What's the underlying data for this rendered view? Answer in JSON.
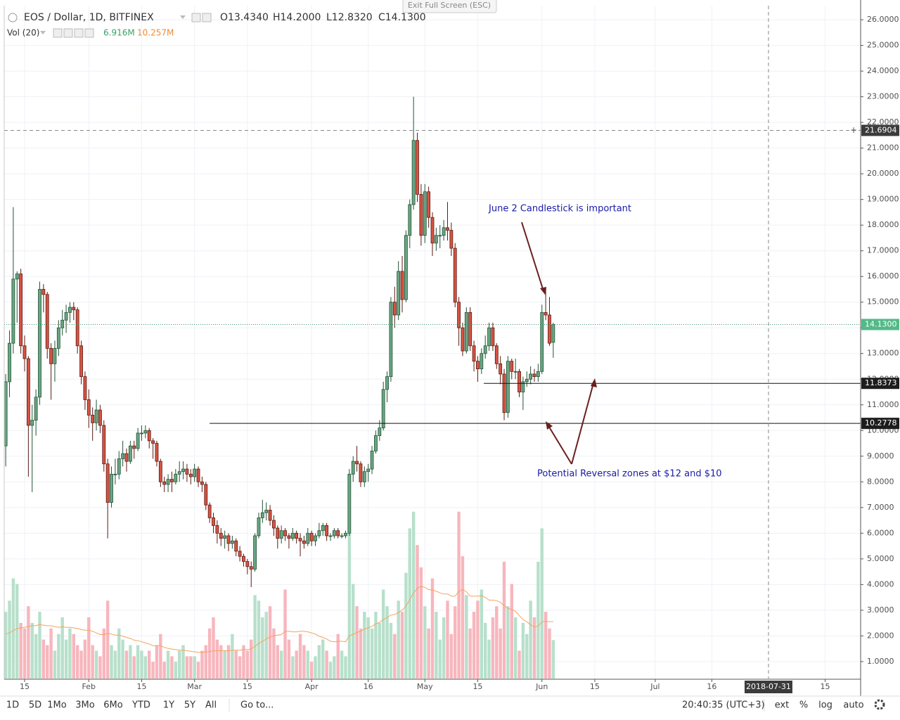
{
  "exit_fullscreen": "Exit Full Screen (ESC)",
  "toolbar": {
    "ranges": [
      "1D",
      "5D",
      "1Mo",
      "3Mo",
      "6Mo",
      "YTD",
      "1Y",
      "5Y",
      "All"
    ],
    "goto": "Go to...",
    "time": "20:40:35 (UTC+3)",
    "options": [
      "ext",
      "%",
      "log",
      "auto"
    ]
  },
  "chart_data": {
    "type": "candlestick",
    "title": "EOS / Dollar, 1D, BITFINEX",
    "ohlc_labels": [
      "O13.4340",
      "H14.2000",
      "L12.8320",
      "C14.1300"
    ],
    "volume_label": "Vol (20)",
    "volume_value": "6.916M",
    "volume_ma_value": "10.257M",
    "up_color": "#6ba583",
    "down_color": "#d75442",
    "up_volume_color": "#b7e0cb",
    "down_volume_color": "#f7b6bd",
    "volume_ma_color": "#f5a35c",
    "grid": true,
    "x": [
      10,
      11,
      12,
      13,
      14,
      15,
      16,
      17,
      18,
      19,
      20,
      21,
      22,
      23,
      24,
      25,
      26,
      27,
      28,
      29,
      30,
      31,
      32,
      33,
      34,
      35,
      36,
      37,
      38,
      39,
      40,
      41,
      42,
      43,
      44,
      45,
      46,
      47,
      48,
      49,
      50,
      51,
      52,
      53,
      54,
      55,
      56,
      57,
      58,
      59,
      60,
      61,
      62,
      63,
      64,
      65,
      66,
      67,
      68,
      69,
      70,
      71,
      72,
      73,
      74,
      75,
      76,
      77,
      78,
      79,
      80,
      81,
      82,
      83,
      84,
      85,
      86,
      87,
      88,
      89,
      90,
      91,
      92,
      93,
      94,
      95,
      96,
      97,
      98,
      99,
      100,
      101,
      102,
      103,
      104,
      105,
      106,
      107,
      108,
      109,
      110,
      111,
      112,
      113,
      114,
      115,
      116,
      117,
      118,
      119,
      120,
      121,
      122,
      123,
      124,
      125,
      126,
      127,
      128,
      129,
      130,
      131,
      132,
      133,
      134,
      135,
      136,
      137,
      138,
      139,
      140,
      141,
      142,
      143,
      144,
      145,
      146,
      147,
      148,
      149,
      150,
      151,
      152,
      153,
      154,
      155
    ],
    "candles": [
      [
        9.4,
        12.2,
        8.6,
        11.9
      ],
      [
        11.9,
        13.9,
        11.3,
        13.4
      ],
      [
        13.4,
        18.7,
        13.0,
        15.9
      ],
      [
        15.9,
        16.2,
        14.2,
        16.1
      ],
      [
        16.1,
        16.3,
        13.0,
        13.3
      ],
      [
        13.3,
        13.7,
        12.3,
        12.8
      ],
      [
        12.8,
        12.9,
        8.2,
        10.2
      ],
      [
        10.2,
        11.0,
        7.6,
        10.4
      ],
      [
        10.4,
        11.6,
        9.8,
        11.3
      ],
      [
        11.3,
        15.8,
        11.0,
        15.5
      ],
      [
        15.5,
        15.7,
        14.6,
        15.3
      ],
      [
        15.3,
        15.4,
        12.8,
        13.2
      ],
      [
        13.2,
        13.4,
        11.2,
        12.6
      ],
      [
        12.6,
        13.5,
        11.9,
        13.2
      ],
      [
        13.2,
        14.3,
        12.9,
        14.0
      ],
      [
        14.0,
        14.7,
        13.7,
        14.3
      ],
      [
        14.3,
        14.9,
        13.8,
        14.6
      ],
      [
        14.6,
        15.0,
        14.2,
        14.8
      ],
      [
        14.8,
        15.0,
        14.3,
        14.7
      ],
      [
        14.7,
        14.8,
        13.0,
        13.3
      ],
      [
        13.3,
        13.5,
        11.8,
        12.1
      ],
      [
        12.1,
        12.3,
        10.8,
        11.2
      ],
      [
        11.2,
        11.6,
        10.1,
        10.6
      ],
      [
        10.6,
        10.9,
        9.6,
        10.3
      ],
      [
        10.3,
        11.2,
        10.0,
        10.8
      ],
      [
        10.8,
        11.0,
        9.9,
        10.2
      ],
      [
        10.2,
        10.4,
        8.4,
        8.7
      ],
      [
        8.7,
        8.9,
        5.8,
        7.2
      ],
      [
        7.2,
        8.6,
        7.0,
        8.3
      ],
      [
        8.3,
        8.9,
        7.9,
        8.3
      ],
      [
        8.3,
        9.2,
        8.1,
        8.9
      ],
      [
        8.9,
        9.6,
        8.6,
        9.1
      ],
      [
        9.1,
        9.3,
        8.4,
        8.8
      ],
      [
        8.8,
        9.6,
        8.7,
        9.4
      ],
      [
        9.4,
        9.6,
        8.9,
        9.3
      ],
      [
        9.3,
        10.1,
        9.2,
        9.9
      ],
      [
        9.9,
        10.2,
        9.6,
        9.9
      ],
      [
        9.9,
        10.2,
        9.7,
        10.0
      ],
      [
        10.0,
        10.1,
        9.3,
        9.6
      ],
      [
        9.6,
        9.7,
        8.9,
        9.5
      ],
      [
        9.5,
        9.6,
        8.6,
        8.8
      ],
      [
        8.8,
        8.9,
        7.8,
        8.0
      ],
      [
        8.0,
        8.2,
        7.6,
        7.9
      ],
      [
        7.9,
        8.3,
        7.6,
        8.1
      ],
      [
        8.1,
        8.4,
        7.6,
        8.0
      ],
      [
        8.0,
        8.5,
        7.9,
        8.3
      ],
      [
        8.3,
        8.8,
        8.0,
        8.4
      ],
      [
        8.4,
        8.8,
        8.1,
        8.5
      ],
      [
        8.5,
        8.7,
        8.0,
        8.3
      ],
      [
        8.3,
        8.5,
        7.9,
        8.2
      ],
      [
        8.2,
        8.7,
        8.0,
        8.5
      ],
      [
        8.5,
        8.6,
        7.8,
        8.0
      ],
      [
        8.0,
        8.2,
        7.6,
        7.9
      ],
      [
        7.9,
        8.0,
        6.9,
        7.1
      ],
      [
        7.1,
        7.2,
        6.4,
        6.6
      ],
      [
        6.6,
        6.8,
        6.0,
        6.3
      ],
      [
        6.3,
        6.5,
        5.6,
        6.0
      ],
      [
        6.0,
        6.2,
        5.5,
        5.8
      ],
      [
        5.8,
        6.1,
        5.4,
        5.9
      ],
      [
        5.9,
        6.0,
        5.3,
        5.6
      ],
      [
        5.6,
        5.9,
        5.4,
        5.7
      ],
      [
        5.7,
        5.8,
        5.1,
        5.3
      ],
      [
        5.3,
        5.5,
        4.9,
        5.1
      ],
      [
        5.1,
        5.2,
        4.7,
        4.9
      ],
      [
        4.9,
        5.0,
        4.4,
        4.7
      ],
      [
        4.7,
        4.9,
        3.9,
        4.6
      ],
      [
        4.6,
        6.0,
        4.5,
        5.9
      ],
      [
        5.9,
        6.8,
        5.8,
        6.6
      ],
      [
        6.6,
        7.3,
        6.4,
        6.8
      ],
      [
        6.8,
        7.2,
        6.5,
        6.9
      ],
      [
        6.9,
        7.1,
        6.3,
        6.5
      ],
      [
        6.5,
        6.7,
        5.9,
        6.2
      ],
      [
        6.2,
        6.3,
        5.4,
        5.8
      ],
      [
        5.8,
        6.3,
        5.6,
        6.1
      ],
      [
        6.1,
        6.2,
        5.7,
        5.9
      ],
      [
        5.9,
        6.0,
        5.4,
        5.8
      ],
      [
        5.8,
        6.2,
        5.7,
        6.0
      ],
      [
        6.0,
        6.1,
        5.6,
        5.8
      ],
      [
        5.8,
        6.0,
        5.1,
        5.7
      ],
      [
        5.7,
        5.9,
        5.4,
        5.6
      ],
      [
        5.6,
        6.2,
        5.5,
        6.0
      ],
      [
        6.0,
        6.1,
        5.5,
        5.7
      ],
      [
        5.7,
        6.0,
        5.5,
        5.9
      ],
      [
        5.9,
        6.4,
        5.8,
        6.1
      ],
      [
        6.1,
        6.4,
        5.9,
        6.3
      ],
      [
        6.3,
        6.4,
        5.7,
        5.9
      ],
      [
        5.9,
        6.0,
        5.7,
        5.9
      ],
      [
        5.9,
        6.2,
        5.8,
        6.1
      ],
      [
        6.1,
        6.2,
        5.8,
        5.9
      ],
      [
        5.9,
        6.0,
        5.8,
        5.9
      ],
      [
        5.9,
        6.1,
        5.8,
        6.0
      ],
      [
        6.0,
        8.5,
        5.9,
        8.3
      ],
      [
        8.3,
        9.0,
        8.0,
        8.8
      ],
      [
        8.8,
        9.4,
        8.4,
        8.7
      ],
      [
        8.7,
        8.8,
        7.8,
        8.0
      ],
      [
        8.0,
        8.6,
        7.8,
        8.4
      ],
      [
        8.4,
        8.7,
        8.0,
        8.5
      ],
      [
        8.5,
        9.4,
        8.3,
        9.2
      ],
      [
        9.2,
        10.0,
        9.1,
        9.8
      ],
      [
        9.8,
        10.4,
        9.6,
        10.1
      ],
      [
        10.1,
        11.9,
        10.0,
        11.6
      ],
      [
        11.6,
        12.3,
        11.1,
        12.1
      ],
      [
        12.1,
        15.2,
        11.9,
        15.0
      ],
      [
        15.0,
        15.6,
        14.0,
        14.5
      ],
      [
        14.5,
        16.6,
        14.3,
        16.2
      ],
      [
        16.2,
        16.8,
        14.6,
        15.1
      ],
      [
        15.1,
        17.8,
        15.0,
        17.6
      ],
      [
        17.6,
        19.0,
        17.1,
        18.8
      ],
      [
        18.8,
        23.0,
        18.6,
        21.3
      ],
      [
        21.3,
        21.6,
        18.9,
        19.2
      ],
      [
        19.2,
        19.6,
        17.2,
        17.6
      ],
      [
        17.6,
        19.6,
        17.3,
        19.3
      ],
      [
        19.3,
        19.5,
        17.9,
        18.3
      ],
      [
        18.3,
        18.5,
        16.8,
        17.3
      ],
      [
        17.3,
        17.9,
        17.0,
        17.6
      ],
      [
        17.6,
        18.0,
        17.1,
        17.6
      ],
      [
        17.6,
        18.2,
        17.4,
        17.9
      ],
      [
        17.9,
        18.9,
        17.4,
        17.8
      ],
      [
        17.8,
        18.1,
        16.8,
        17.1
      ],
      [
        17.1,
        17.3,
        14.8,
        15.0
      ],
      [
        15.0,
        15.2,
        13.3,
        14.0
      ],
      [
        14.0,
        14.2,
        12.9,
        13.1
      ],
      [
        13.1,
        14.8,
        13.0,
        14.6
      ],
      [
        14.6,
        14.8,
        13.1,
        13.3
      ],
      [
        13.3,
        13.5,
        12.3,
        12.7
      ],
      [
        12.7,
        12.9,
        11.9,
        12.4
      ],
      [
        12.4,
        13.2,
        12.2,
        13.0
      ],
      [
        13.0,
        13.7,
        12.8,
        13.3
      ],
      [
        13.3,
        14.2,
        13.1,
        14.0
      ],
      [
        14.0,
        14.2,
        13.1,
        13.3
      ],
      [
        13.3,
        13.4,
        12.4,
        12.6
      ],
      [
        12.6,
        12.9,
        11.8,
        12.2
      ],
      [
        12.2,
        12.4,
        10.4,
        10.7
      ],
      [
        10.7,
        12.9,
        10.5,
        12.7
      ],
      [
        12.7,
        12.8,
        12.0,
        12.3
      ],
      [
        12.3,
        12.8,
        12.0,
        12.3
      ],
      [
        12.3,
        12.4,
        11.3,
        11.5
      ],
      [
        11.5,
        12.1,
        10.8,
        11.9
      ],
      [
        11.9,
        12.3,
        11.7,
        12.0
      ],
      [
        12.0,
        12.5,
        11.8,
        12.2
      ],
      [
        12.2,
        12.4,
        11.9,
        12.1
      ],
      [
        12.1,
        12.6,
        11.9,
        12.3
      ],
      [
        12.3,
        14.9,
        12.2,
        14.6
      ],
      [
        14.6,
        15.5,
        14.3,
        14.5
      ],
      [
        14.5,
        15.2,
        13.3,
        13.4
      ],
      [
        13.434,
        14.2,
        12.832,
        14.13
      ]
    ],
    "volume": [
      12,
      14,
      18,
      17,
      10,
      9,
      13,
      10,
      8,
      12,
      7,
      6,
      9,
      5,
      8,
      11,
      7,
      9,
      8,
      6,
      5,
      7,
      11,
      6,
      5,
      4,
      9,
      14,
      6,
      5,
      9,
      7,
      5,
      6,
      4,
      6,
      5,
      4,
      5,
      3,
      6,
      8,
      3,
      5,
      4,
      3,
      5,
      6,
      4,
      4,
      4,
      3,
      5,
      6,
      9,
      11,
      7,
      6,
      5,
      6,
      8,
      5,
      4,
      6,
      5,
      7,
      15,
      14,
      11,
      12,
      13,
      9,
      6,
      5,
      16,
      7,
      4,
      5,
      8,
      6,
      5,
      3,
      4,
      6,
      7,
      5,
      3,
      4,
      8,
      5,
      4,
      26,
      17,
      13,
      9,
      12,
      11,
      9,
      12,
      10,
      16,
      13,
      10,
      8,
      14,
      12,
      19,
      27,
      30,
      24,
      20,
      13,
      9,
      18,
      12,
      7,
      11,
      14,
      8,
      13,
      30,
      22,
      15,
      9,
      12,
      14,
      16,
      10,
      7,
      11,
      13,
      9,
      21,
      13,
      17,
      11,
      5,
      10,
      8,
      14,
      11,
      21,
      27,
      12,
      9,
      6.916
    ],
    "volume_ma": [
      8,
      8.2,
      8.6,
      9,
      9.1,
      9.2,
      9.4,
      9.5,
      9.5,
      9.7,
      9.6,
      9.5,
      9.5,
      9.3,
      9.2,
      9.3,
      9.2,
      9.2,
      9.1,
      9.0,
      8.8,
      8.7,
      8.7,
      8.5,
      8.2,
      7.9,
      7.9,
      8.1,
      8.0,
      7.8,
      7.8,
      7.6,
      7.4,
      7.2,
      6.9,
      6.8,
      6.6,
      6.4,
      6.2,
      5.9,
      5.9,
      5.9,
      5.6,
      5.4,
      5.3,
      5.2,
      5.1,
      5.1,
      5.0,
      4.9,
      4.8,
      4.7,
      4.7,
      4.8,
      4.8,
      5.0,
      5.0,
      5.0,
      5.0,
      5.0,
      5.1,
      5.1,
      5.1,
      5.2,
      5.2,
      5.3,
      5.8,
      6.3,
      6.7,
      7.1,
      7.5,
      7.7,
      7.8,
      7.9,
      8.5,
      8.5,
      8.4,
      8.4,
      8.5,
      8.5,
      8.4,
      8.2,
      8.0,
      7.6,
      7.4,
      7.1,
      6.7,
      6.6,
      6.7,
      6.7,
      6.6,
      7.7,
      7.9,
      8.3,
      8.5,
      8.9,
      9.1,
      9.4,
      9.8,
      10.1,
      10.6,
      11.0,
      11.4,
      11.5,
      11.9,
      12.3,
      13.0,
      14.2,
      15.4,
      16.2,
      16.6,
      16.4,
      16.0,
      15.9,
      15.7,
      15.4,
      15.2,
      15.2,
      14.8,
      14.8,
      15.7,
      16.0,
      15.6,
      14.8,
      14.8,
      14.8,
      14.9,
      14.6,
      14.1,
      14.1,
      14.0,
      13.7,
      13.1,
      12.6,
      12.4,
      12.1,
      11.3,
      10.6,
      10.2,
      9.7,
      9.3,
      9.4,
      10.2,
      10.3,
      10.2,
      10.257
    ],
    "vol_lim": [
      0,
      121
    ],
    "xlim": [
      9.6,
      236.4
    ],
    "ylim": [
      0.34,
      26.55
    ],
    "xticks": [
      {
        "value": 15,
        "label": "15"
      },
      {
        "value": 32,
        "label": "Feb"
      },
      {
        "value": 46,
        "label": "15"
      },
      {
        "value": 60,
        "label": "Mar"
      },
      {
        "value": 74,
        "label": "15"
      },
      {
        "value": 91,
        "label": "Apr"
      },
      {
        "value": 106,
        "label": "16"
      },
      {
        "value": 121,
        "label": "May"
      },
      {
        "value": 135,
        "label": "15"
      },
      {
        "value": 152,
        "label": "Jun"
      },
      {
        "value": 166,
        "label": "15"
      },
      {
        "value": 182,
        "label": "Jul"
      },
      {
        "value": 197,
        "label": "16"
      },
      {
        "value": 227,
        "label": "15"
      }
    ],
    "yticks": [
      {
        "value": 1,
        "label": "1.0000"
      },
      {
        "value": 2,
        "label": "2.0000"
      },
      {
        "value": 3,
        "label": "3.0000"
      },
      {
        "value": 4,
        "label": "4.0000"
      },
      {
        "value": 5,
        "label": "5.0000"
      },
      {
        "value": 6,
        "label": "6.0000"
      },
      {
        "value": 7,
        "label": "7.0000"
      },
      {
        "value": 8,
        "label": "8.0000"
      },
      {
        "value": 9,
        "label": "9.0000"
      },
      {
        "value": 10,
        "label": "10.0000"
      },
      {
        "value": 11,
        "label": "11.0000"
      },
      {
        "value": 12,
        "label": "12.0000"
      },
      {
        "value": 13,
        "label": "13.0000"
      },
      {
        "value": 14,
        "label": "14.0000"
      },
      {
        "value": 15,
        "label": "15.0000"
      },
      {
        "value": 16,
        "label": "16.0000"
      },
      {
        "value": 17,
        "label": "17.0000"
      },
      {
        "value": 18,
        "label": "18.0000"
      },
      {
        "value": 19,
        "label": "19.0000"
      },
      {
        "value": 20,
        "label": "20.0000"
      },
      {
        "value": 21,
        "label": "21.0000"
      },
      {
        "value": 22,
        "label": "22.0000"
      },
      {
        "value": 23,
        "label": "23.0000"
      },
      {
        "value": 24,
        "label": "24.0000"
      },
      {
        "value": 25,
        "label": "25.0000"
      },
      {
        "value": 26,
        "label": "26.0000"
      }
    ],
    "last_price": {
      "value": 14.13,
      "label": "14.1300"
    },
    "crosshair": {
      "x": {
        "value": 212,
        "label": "2018-07-31"
      },
      "y": {
        "value": 21.6904,
        "label": "21.6904"
      }
    },
    "hlines": [
      {
        "value": 11.8373,
        "label": "11.8373",
        "from": 136.6
      },
      {
        "value": 10.2778,
        "label": "10.2778",
        "from": 64
      }
    ],
    "annotations": [
      "June 2 Candlestick is important",
      "Potential Reversal zones at $12 and $10"
    ]
  }
}
